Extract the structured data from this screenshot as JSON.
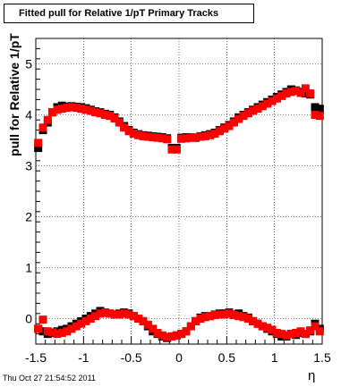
{
  "chart_data": {
    "type": "scatter",
    "title": "Fitted pull for Relative 1/pT  Primary Tracks",
    "xlabel": "η",
    "ylabel": "pull for Relative 1/pT",
    "xlim": [
      -1.5,
      1.5
    ],
    "ylim": [
      -0.5,
      5.5
    ],
    "x_ticks": [
      "-1.5",
      "-1",
      "-0.5",
      "0",
      "0.5",
      "1",
      "1.5"
    ],
    "y_ticks": [
      "0",
      "1",
      "2",
      "3",
      "4",
      "5"
    ],
    "grid": true,
    "series": [
      {
        "color": "#000000",
        "marker": "square",
        "x": [
          -1.475,
          -1.425,
          -1.375,
          -1.325,
          -1.275,
          -1.225,
          -1.175,
          -1.125,
          -1.075,
          -1.025,
          -0.975,
          -0.925,
          -0.875,
          -0.825,
          -0.775,
          -0.725,
          -0.675,
          -0.625,
          -0.575,
          -0.525,
          -0.475,
          -0.425,
          -0.375,
          -0.325,
          -0.275,
          -0.225,
          -0.175,
          -0.125,
          -0.075,
          -0.025,
          0.025,
          0.075,
          0.125,
          0.175,
          0.225,
          0.275,
          0.325,
          0.375,
          0.425,
          0.475,
          0.525,
          0.575,
          0.625,
          0.675,
          0.725,
          0.775,
          0.825,
          0.875,
          0.925,
          0.975,
          1.025,
          1.075,
          1.125,
          1.175,
          1.225,
          1.275,
          1.325,
          1.375,
          1.425,
          1.475,
          -1.475,
          -1.425,
          -1.375,
          -1.325,
          -1.275,
          -1.225,
          -1.175,
          -1.125,
          -1.075,
          -1.025,
          -0.975,
          -0.925,
          -0.875,
          -0.825,
          -0.775,
          -0.725,
          -0.675,
          -0.625,
          -0.575,
          -0.525,
          -0.475,
          -0.425,
          -0.375,
          -0.325,
          -0.275,
          -0.225,
          -0.175,
          -0.125,
          -0.075,
          -0.025,
          0.025,
          0.075,
          0.125,
          0.175,
          0.225,
          0.275,
          0.325,
          0.375,
          0.425,
          0.475,
          0.525,
          0.575,
          0.625,
          0.675,
          0.725,
          0.775,
          0.825,
          0.875,
          0.925,
          0.975,
          1.025,
          1.075,
          1.125,
          1.175,
          1.225,
          1.275,
          1.325,
          1.375,
          1.425,
          1.475
        ],
        "y": [
          3.35,
          3.7,
          3.85,
          4.05,
          4.15,
          4.18,
          4.16,
          4.17,
          4.16,
          4.15,
          4.13,
          4.1,
          4.07,
          4.05,
          4.02,
          4.0,
          3.95,
          3.87,
          3.78,
          3.7,
          3.65,
          3.62,
          3.6,
          3.59,
          3.58,
          3.57,
          3.56,
          3.54,
          3.35,
          3.35,
          3.55,
          3.56,
          3.56,
          3.55,
          3.58,
          3.6,
          3.62,
          3.65,
          3.7,
          3.75,
          3.8,
          3.87,
          3.95,
          4.0,
          4.05,
          4.1,
          4.15,
          4.2,
          4.25,
          4.3,
          4.35,
          4.4,
          4.45,
          4.5,
          4.48,
          4.45,
          4.42,
          4.4,
          4.15,
          4.12,
          -0.2,
          -0.25,
          -0.3,
          -0.28,
          -0.25,
          -0.22,
          -0.2,
          -0.15,
          -0.1,
          -0.05,
          0.0,
          0.05,
          0.1,
          0.15,
          0.12,
          0.1,
          0.08,
          0.1,
          0.12,
          0.1,
          0.05,
          0.0,
          -0.05,
          -0.15,
          -0.25,
          -0.3,
          -0.35,
          -0.38,
          -0.35,
          -0.33,
          -0.3,
          -0.25,
          -0.15,
          -0.05,
          0.02,
          0.05,
          0.05,
          0.08,
          0.1,
          0.1,
          0.12,
          0.08,
          0.1,
          0.05,
          0.02,
          -0.05,
          -0.1,
          -0.15,
          -0.2,
          -0.25,
          -0.3,
          -0.35,
          -0.35,
          -0.3,
          -0.32,
          -0.28,
          -0.3,
          -0.25,
          -0.1,
          -0.2
        ]
      },
      {
        "color": "#ff0000",
        "marker": "square",
        "x": [
          -1.475,
          -1.425,
          -1.375,
          -1.325,
          -1.275,
          -1.225,
          -1.175,
          -1.125,
          -1.075,
          -1.025,
          -0.975,
          -0.925,
          -0.875,
          -0.825,
          -0.775,
          -0.725,
          -0.675,
          -0.625,
          -0.575,
          -0.525,
          -0.475,
          -0.425,
          -0.375,
          -0.325,
          -0.275,
          -0.225,
          -0.175,
          -0.125,
          -0.075,
          -0.025,
          0.025,
          0.075,
          0.125,
          0.175,
          0.225,
          0.275,
          0.325,
          0.375,
          0.425,
          0.475,
          0.525,
          0.575,
          0.625,
          0.675,
          0.725,
          0.775,
          0.825,
          0.875,
          0.925,
          0.975,
          1.025,
          1.075,
          1.125,
          1.175,
          1.225,
          1.275,
          1.325,
          1.375,
          1.425,
          1.475,
          -1.475,
          -1.425,
          -1.375,
          -1.325,
          -1.275,
          -1.225,
          -1.175,
          -1.125,
          -1.075,
          -1.025,
          -0.975,
          -0.925,
          -0.875,
          -0.825,
          -0.775,
          -0.725,
          -0.675,
          -0.625,
          -0.575,
          -0.525,
          -0.475,
          -0.425,
          -0.375,
          -0.325,
          -0.275,
          -0.225,
          -0.175,
          -0.125,
          -0.075,
          -0.025,
          0.025,
          0.075,
          0.125,
          0.175,
          0.225,
          0.275,
          0.325,
          0.375,
          0.425,
          0.475,
          0.525,
          0.575,
          0.625,
          0.675,
          0.725,
          0.775,
          0.825,
          0.875,
          0.925,
          0.975,
          1.025,
          1.075,
          1.125,
          1.175,
          1.225,
          1.275,
          1.325,
          1.375,
          1.425,
          1.475
        ],
        "y": [
          3.45,
          3.75,
          3.9,
          4.05,
          4.1,
          4.12,
          4.14,
          4.15,
          4.14,
          4.12,
          4.1,
          4.08,
          4.05,
          4.03,
          4.0,
          3.98,
          3.93,
          3.85,
          3.75,
          3.68,
          3.63,
          3.6,
          3.58,
          3.57,
          3.56,
          3.55,
          3.54,
          3.52,
          3.32,
          3.32,
          3.53,
          3.54,
          3.55,
          3.56,
          3.57,
          3.58,
          3.6,
          3.63,
          3.68,
          3.73,
          3.78,
          3.85,
          3.92,
          3.98,
          4.03,
          4.08,
          4.12,
          4.17,
          4.22,
          4.27,
          4.32,
          4.37,
          4.42,
          4.45,
          4.47,
          4.43,
          4.52,
          4.42,
          4.0,
          3.98,
          -0.2,
          -0.02,
          -0.25,
          -0.27,
          -0.3,
          -0.28,
          -0.25,
          -0.2,
          -0.15,
          -0.1,
          -0.05,
          0.0,
          0.05,
          0.1,
          0.12,
          0.1,
          0.08,
          0.08,
          0.1,
          0.08,
          0.05,
          0.0,
          -0.05,
          -0.12,
          -0.2,
          -0.28,
          -0.33,
          -0.36,
          -0.35,
          -0.33,
          -0.3,
          -0.25,
          -0.15,
          -0.05,
          0.0,
          0.03,
          0.05,
          0.07,
          0.08,
          0.08,
          0.1,
          0.07,
          0.05,
          0.03,
          0.0,
          -0.05,
          -0.1,
          -0.15,
          -0.18,
          -0.22,
          -0.28,
          -0.3,
          -0.33,
          -0.3,
          -0.28,
          -0.25,
          -0.3,
          -0.23,
          -0.15,
          -0.25
        ]
      }
    ]
  },
  "footer": {
    "timestamp": "Thu Oct 27 21:54:52 2011"
  }
}
